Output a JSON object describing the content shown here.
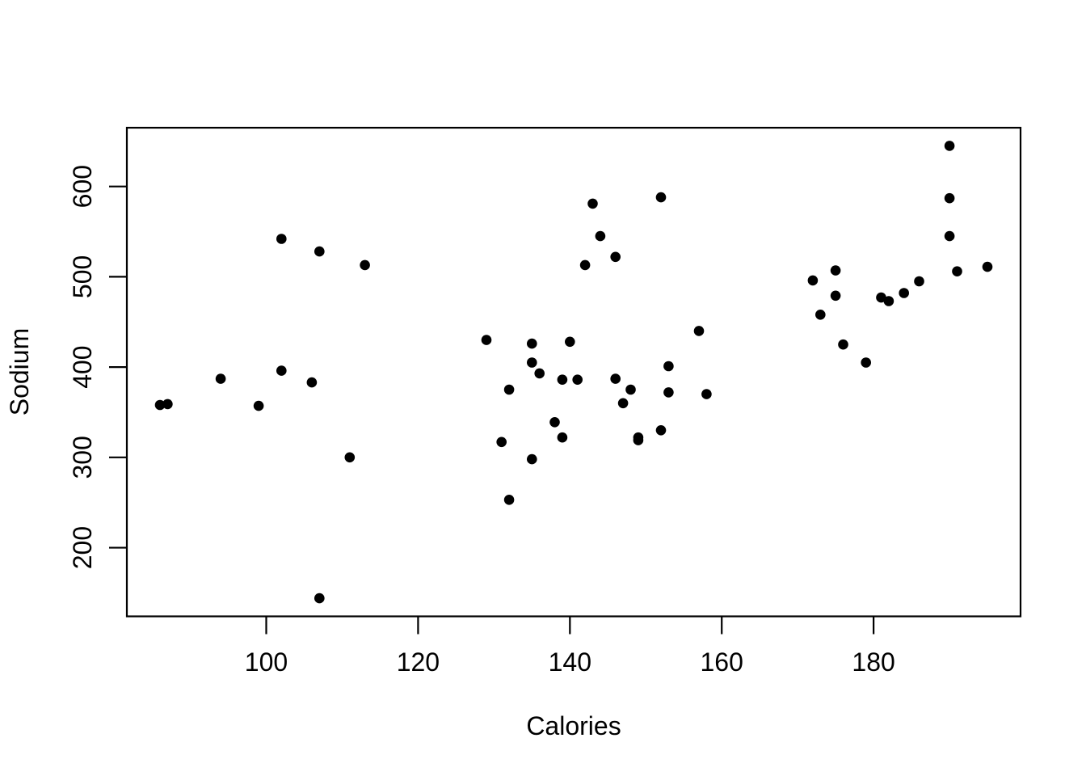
{
  "figure": {
    "background": "#ffffff",
    "foreground": "#000000"
  },
  "chart_data": {
    "type": "scatter",
    "title": "",
    "xlabel": "Calories",
    "ylabel": "Sodium",
    "x_ticks": [
      100,
      120,
      140,
      160,
      180
    ],
    "y_ticks": [
      200,
      300,
      400,
      500,
      600
    ],
    "x_data_range": [
      86,
      195
    ],
    "y_data_range": [
      144,
      645
    ],
    "x_axis_range": [
      81.64,
      199.36
    ],
    "y_axis_range": [
      123.96,
      665.04
    ],
    "grid": false,
    "legend": false,
    "marker": {
      "shape": "filled-circle",
      "color": "#000000",
      "radius_px": 6.3
    },
    "points_format": [
      "calories",
      "sodium"
    ],
    "points": [
      [
        186,
        495
      ],
      [
        181,
        477
      ],
      [
        176,
        425
      ],
      [
        149,
        322
      ],
      [
        184,
        482
      ],
      [
        190,
        587
      ],
      [
        158,
        370
      ],
      [
        139,
        322
      ],
      [
        175,
        479
      ],
      [
        148,
        375
      ],
      [
        152,
        330
      ],
      [
        111,
        300
      ],
      [
        141,
        386
      ],
      [
        153,
        401
      ],
      [
        190,
        645
      ],
      [
        157,
        440
      ],
      [
        131,
        317
      ],
      [
        149,
        319
      ],
      [
        135,
        298
      ],
      [
        132,
        253
      ],
      [
        173,
        458
      ],
      [
        191,
        506
      ],
      [
        182,
        473
      ],
      [
        190,
        545
      ],
      [
        172,
        496
      ],
      [
        147,
        360
      ],
      [
        146,
        387
      ],
      [
        139,
        386
      ],
      [
        175,
        507
      ],
      [
        136,
        393
      ],
      [
        179,
        405
      ],
      [
        153,
        372
      ],
      [
        107,
        144
      ],
      [
        195,
        511
      ],
      [
        135,
        405
      ],
      [
        140,
        428
      ],
      [
        138,
        339
      ],
      [
        129,
        430
      ],
      [
        132,
        375
      ],
      [
        102,
        396
      ],
      [
        106,
        383
      ],
      [
        94,
        387
      ],
      [
        102,
        542
      ],
      [
        87,
        359
      ],
      [
        99,
        357
      ],
      [
        107,
        528
      ],
      [
        113,
        513
      ],
      [
        135,
        426
      ],
      [
        142,
        513
      ],
      [
        86,
        358
      ],
      [
        143,
        581
      ],
      [
        152,
        588
      ],
      [
        146,
        522
      ],
      [
        144,
        545
      ]
    ]
  }
}
